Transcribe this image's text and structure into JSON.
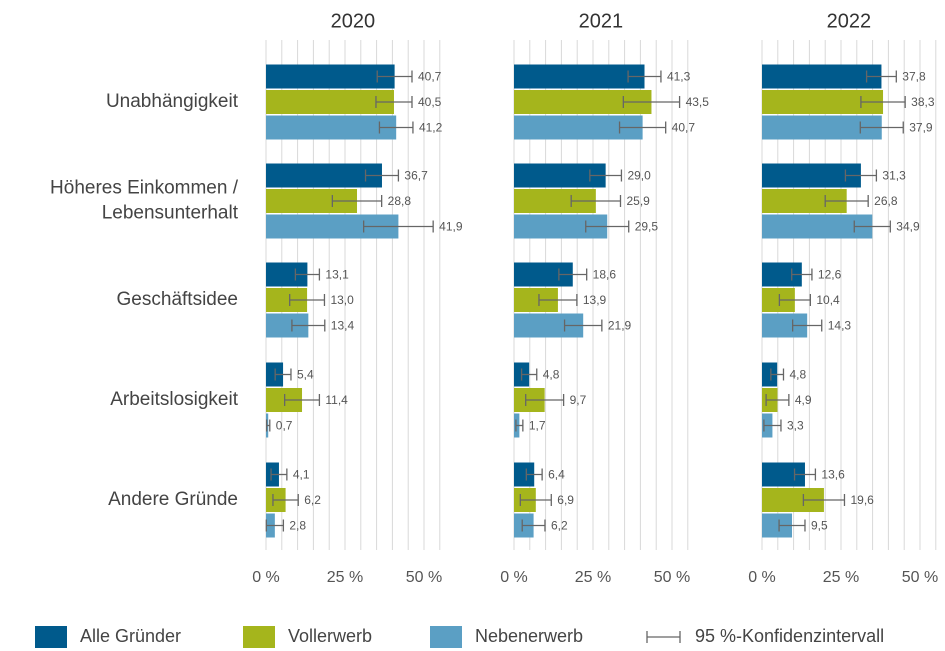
{
  "chart_data": {
    "type": "bar",
    "orientation": "horizontal",
    "categories": [
      "Unabhängigkeit",
      "Höheres Einkommen /\nLebensunterhalt",
      "Geschäftsidee",
      "Arbeitslosigkeit",
      "Andere Gründe"
    ],
    "series": [
      {
        "name": "Alle Gründer",
        "color": "#005a8c"
      },
      {
        "name": "Vollerwerb",
        "color": "#a5b51c"
      },
      {
        "name": "Nebenerwerb",
        "color": "#5b9fc4"
      }
    ],
    "error_label": "95 %-Konfidenzintervall",
    "error_color": "#666666",
    "xlim": [
      0,
      55
    ],
    "xticks": [
      {
        "value": 0,
        "label": "0 %"
      },
      {
        "value": 25,
        "label": "25 %"
      },
      {
        "value": 50,
        "label": "50 %"
      }
    ],
    "grid_x": [
      0,
      5,
      10,
      15,
      20,
      25,
      30,
      35,
      40,
      45,
      50,
      55
    ],
    "grid": true,
    "facets": [
      {
        "title": "2020",
        "series": [
          {
            "values": [
              40.7,
              36.7,
              13.1,
              5.4,
              4.1
            ],
            "value_labels": [
              "40,7",
              "36,7",
              "13,1",
              "5,4",
              "4,1"
            ],
            "errors": [
              5.5,
              5.2,
              3.8,
              2.5,
              2.5
            ]
          },
          {
            "values": [
              40.5,
              28.8,
              13.0,
              11.4,
              6.2
            ],
            "value_labels": [
              "40,5",
              "28,8",
              "13,0",
              "11,4",
              "6,2"
            ],
            "errors": [
              5.7,
              7.8,
              5.5,
              5.5,
              4
            ]
          },
          {
            "values": [
              41.2,
              41.9,
              13.4,
              0.7,
              2.8
            ],
            "value_labels": [
              "41,2",
              "41,9",
              "13,4",
              "0,7",
              "2,8"
            ],
            "errors": [
              5.3,
              11,
              5.2,
              0.5,
              2.7
            ]
          }
        ]
      },
      {
        "title": "2021",
        "series": [
          {
            "values": [
              41.3,
              29.0,
              18.6,
              4.8,
              6.4
            ],
            "value_labels": [
              "41,3",
              "29,0",
              "18,6",
              "4,8",
              "6,4"
            ],
            "errors": [
              5.2,
              5,
              4.4,
              2.4,
              2.5
            ]
          },
          {
            "values": [
              43.5,
              25.9,
              13.9,
              9.7,
              6.9
            ],
            "value_labels": [
              "43,5",
              "25,9",
              "13,9",
              "9,7",
              "6,9"
            ],
            "errors": [
              8.9,
              7.8,
              6,
              6,
              4.9
            ]
          },
          {
            "values": [
              40.7,
              29.5,
              21.9,
              1.7,
              6.2
            ],
            "value_labels": [
              "40,7",
              "29,5",
              "21,9",
              "1,7",
              "6,2"
            ],
            "errors": [
              7.3,
              6.8,
              5.9,
              1.1,
              3.6
            ]
          }
        ]
      },
      {
        "title": "2022",
        "series": [
          {
            "values": [
              37.8,
              31.3,
              12.6,
              4.8,
              13.6
            ],
            "value_labels": [
              "37,8",
              "31,3",
              "12,6",
              "4,8",
              "13,6"
            ],
            "errors": [
              4.7,
              4.9,
              3.2,
              2,
              3.3
            ]
          },
          {
            "values": [
              38.3,
              26.8,
              10.4,
              4.9,
              19.6
            ],
            "value_labels": [
              "38,3",
              "26,8",
              "10,4",
              "4,9",
              "19,6"
            ],
            "errors": [
              7,
              6.8,
              4.9,
              3.6,
              6.5
            ]
          },
          {
            "values": [
              37.9,
              34.9,
              14.3,
              3.3,
              9.5
            ],
            "value_labels": [
              "37,9",
              "34,9",
              "14,3",
              "3,3",
              "9,5"
            ],
            "errors": [
              6.8,
              5.7,
              4.6,
              2.7,
              4.1
            ]
          }
        ]
      }
    ]
  }
}
